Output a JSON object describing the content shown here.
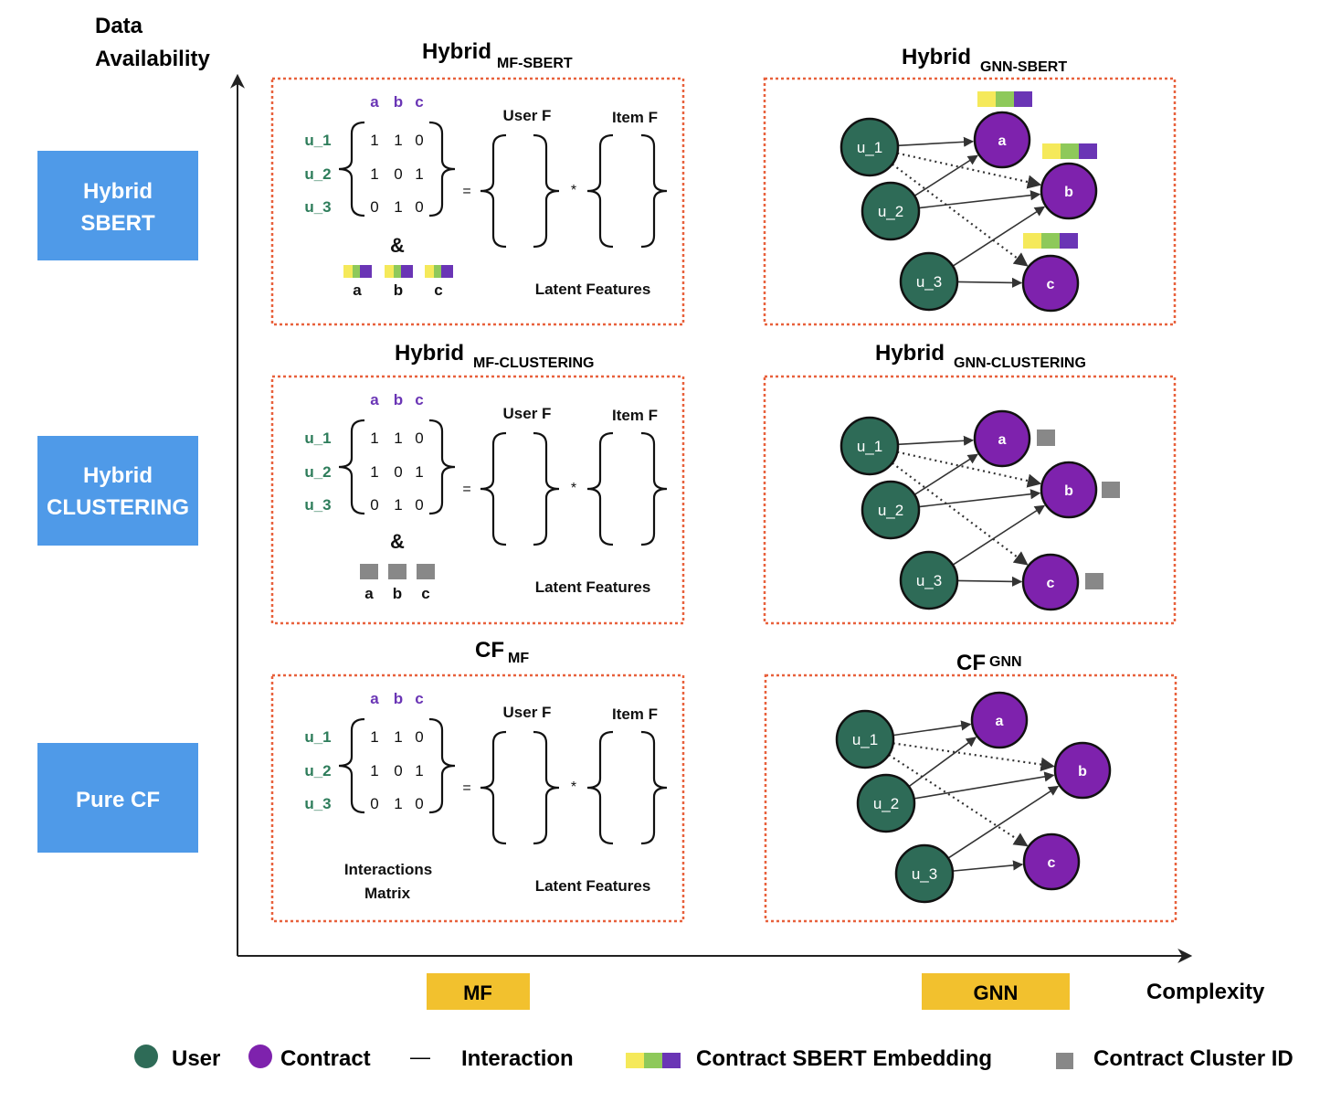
{
  "axes": {
    "y_label_line1": "Data",
    "y_label_line2": "Availability",
    "x_label": "Complexity"
  },
  "rows": [
    {
      "label_line1": "Hybrid",
      "label_line2": "SBERT"
    },
    {
      "label_line1": "Hybrid",
      "label_line2": "CLUSTERING"
    },
    {
      "label_line1": "Pure CF",
      "label_line2": ""
    }
  ],
  "columns": [
    {
      "label": "MF"
    },
    {
      "label": "GNN"
    }
  ],
  "panels": {
    "mf_sbert": {
      "title": "Hybrid",
      "subscript": "MF-SBERT"
    },
    "gnn_sbert": {
      "title": "Hybrid",
      "subscript": "GNN-SBERT"
    },
    "mf_clustering": {
      "title": "Hybrid",
      "subscript": "MF-CLUSTERING"
    },
    "gnn_clustering": {
      "title": "Hybrid",
      "subscript": "GNN-CLUSTERING"
    },
    "cf_mf": {
      "title": "CF",
      "subscript": "MF"
    },
    "cf_gnn": {
      "title": "CF",
      "subscript": "GNN"
    }
  },
  "matrix": {
    "items": [
      "a",
      "b",
      "c"
    ],
    "users": [
      "u_1",
      "u_2",
      "u_3"
    ],
    "rows": [
      [
        "1",
        "1",
        "0"
      ],
      [
        "1",
        "0",
        "1"
      ],
      [
        "0",
        "1",
        "0"
      ]
    ],
    "equals": "=",
    "times": "*",
    "user_factor_label": "User F",
    "item_factor_label": "Item F",
    "latent_label": "Latent Features",
    "ampersand": "&",
    "interactions_line1": "Interactions",
    "interactions_line2": "Matrix"
  },
  "graph": {
    "users": [
      "u_1",
      "u_2",
      "u_3"
    ],
    "items": [
      "a",
      "b",
      "c"
    ]
  },
  "legend": {
    "user": "User",
    "contract": "Contract",
    "dash": "—",
    "interaction": "Interaction",
    "sbert_embedding": "Contract SBERT Embedding",
    "cluster_id": "Contract Cluster ID"
  },
  "colors": {
    "row_box": "#4f9ae8",
    "column_box": "#f2c12e",
    "panel_border": "#e8613c",
    "user_node": "#2e6b57",
    "item_node": "#7e22ad",
    "user_text": "#2e7d5b",
    "item_text": "#6a35b5",
    "embedding_yellow": "#f5e95a",
    "embedding_green": "#8ec95a",
    "embedding_purple": "#6a35b5",
    "cluster_gray": "#888888"
  }
}
